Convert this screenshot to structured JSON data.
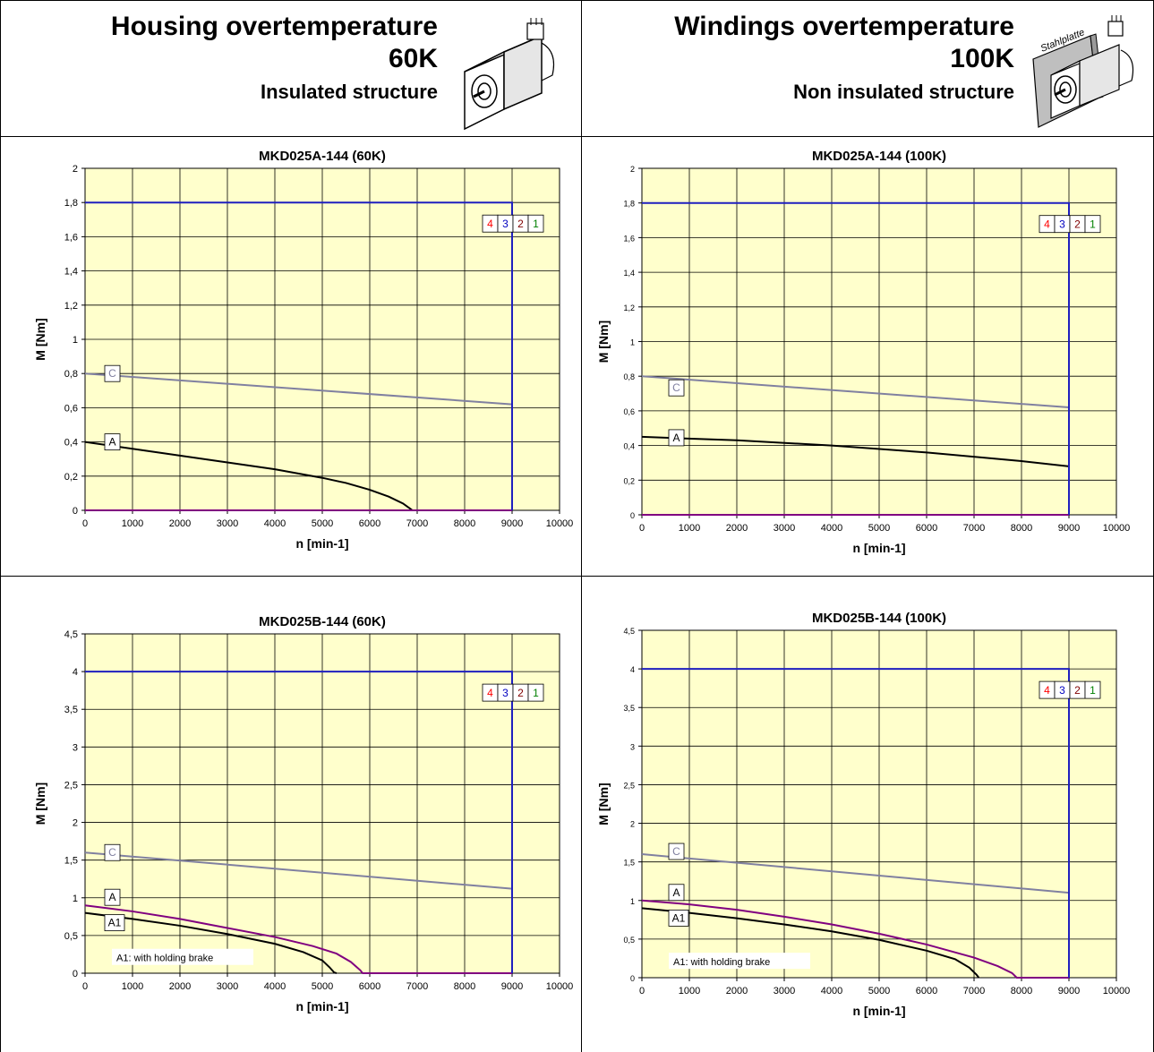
{
  "header_left": {
    "title": "Housing overtemperature",
    "value": "60K",
    "subtitle": "Insulated structure"
  },
  "header_right": {
    "title": "Windings overtemperature",
    "value": "100K",
    "subtitle": "Non insulated structure",
    "plate_label": "Stahlplatte"
  },
  "colors": {
    "plot_bg": "#ffffcc",
    "grid": "#000000",
    "curve_C": "#8080a0",
    "curve_A": "#000000",
    "curve_A_brake": "#800080",
    "limit_blue": "#1f1fbf",
    "label_4": "#ff0000",
    "label_3": "#0000c0",
    "label_2": "#800000",
    "label_1": "#008000"
  },
  "chart_data": [
    {
      "id": "c1",
      "type": "line",
      "title": "MKD025A-144 (60K)",
      "xlabel": "n [min-1]",
      "ylabel": "M [Nm]",
      "xlim": [
        0,
        10000
      ],
      "ylim": [
        0,
        2
      ],
      "xticks": [
        0,
        1000,
        2000,
        3000,
        4000,
        5000,
        6000,
        7000,
        8000,
        9000,
        10000
      ],
      "xtick_labels": [
        "0",
        "1000",
        "2000",
        "3000",
        "4000",
        "5000",
        "6000",
        "7000",
        "8000",
        "9000",
        "10000"
      ],
      "yticks": [
        0,
        0.2,
        0.4,
        0.6,
        0.8,
        1,
        1.2,
        1.4,
        1.6,
        1.8,
        2
      ],
      "ytick_labels": [
        "0",
        "0,2",
        "0,4",
        "0,6",
        "0,8",
        "1",
        "1,2",
        "1,4",
        "1,6",
        "1,8",
        "2"
      ],
      "grid": true,
      "limit_box": {
        "x": 9000,
        "y": 1.8
      },
      "curve_labels": [
        "4",
        "3",
        "2",
        "1"
      ],
      "series": [
        {
          "name": "C",
          "x": [
            0,
            9000
          ],
          "y": [
            0.8,
            0.62
          ]
        },
        {
          "name": "A",
          "x": [
            0,
            1000,
            2000,
            3000,
            4000,
            5000,
            5500,
            6000,
            6400,
            6700,
            6850,
            6900,
            9000
          ],
          "y": [
            0.4,
            0.36,
            0.32,
            0.28,
            0.24,
            0.19,
            0.16,
            0.12,
            0.08,
            0.04,
            0.01,
            0,
            0
          ]
        },
        {
          "name": "",
          "x": [
            0,
            9000
          ],
          "y": [
            0,
            0
          ]
        }
      ],
      "annotation": ""
    },
    {
      "id": "c2",
      "type": "line",
      "title": "MKD025A-144 (100K)",
      "xlabel": "n [min-1]",
      "ylabel": "M [Nm]",
      "xlim": [
        0,
        10000
      ],
      "ylim": [
        0,
        2
      ],
      "xticks": [
        0,
        1000,
        2000,
        3000,
        4000,
        5000,
        6000,
        7000,
        8000,
        9000,
        10000
      ],
      "xtick_labels": [
        "0",
        "1000",
        "2000",
        "3000",
        "4000",
        "5000",
        "6000",
        "7000",
        "8000",
        "9000",
        "10000"
      ],
      "yticks": [
        0,
        0.2,
        0.4,
        0.6,
        0.8,
        1,
        1.2,
        1.4,
        1.6,
        1.8,
        2
      ],
      "ytick_labels": [
        "0",
        "0,2",
        "0,4",
        "0,6",
        "0,8",
        "1",
        "1,2",
        "1,4",
        "1,6",
        "1,8",
        "2"
      ],
      "grid": true,
      "limit_box": {
        "x": 9000,
        "y": 1.8
      },
      "curve_labels": [
        "4",
        "3",
        "2",
        "1"
      ],
      "series": [
        {
          "name": "C",
          "x": [
            0,
            9000
          ],
          "y": [
            0.8,
            0.62
          ]
        },
        {
          "name": "A",
          "x": [
            0,
            2000,
            4000,
            6000,
            8000,
            9000
          ],
          "y": [
            0.45,
            0.43,
            0.4,
            0.36,
            0.31,
            0.28
          ]
        },
        {
          "name": "",
          "x": [
            0,
            9000
          ],
          "y": [
            0,
            0
          ]
        }
      ],
      "annotation": ""
    },
    {
      "id": "c3",
      "type": "line",
      "title": "MKD025B-144 (60K)",
      "xlabel": "n [min-1]",
      "ylabel": "M [Nm]",
      "xlim": [
        0,
        10000
      ],
      "ylim": [
        0,
        4.5
      ],
      "xticks": [
        0,
        1000,
        2000,
        3000,
        4000,
        5000,
        6000,
        7000,
        8000,
        9000,
        10000
      ],
      "xtick_labels": [
        "0",
        "1000",
        "2000",
        "3000",
        "4000",
        "5000",
        "6000",
        "7000",
        "8000",
        "9000",
        "10000"
      ],
      "yticks": [
        0,
        0.5,
        1,
        1.5,
        2,
        2.5,
        3,
        3.5,
        4,
        4.5
      ],
      "ytick_labels": [
        "0",
        "0,5",
        "1",
        "1,5",
        "2",
        "2,5",
        "3",
        "3,5",
        "4",
        "4,5"
      ],
      "grid": true,
      "limit_box": {
        "x": 9000,
        "y": 4
      },
      "curve_labels": [
        "4",
        "3",
        "2",
        "1"
      ],
      "series": [
        {
          "name": "C",
          "x": [
            0,
            9000
          ],
          "y": [
            1.6,
            1.12
          ]
        },
        {
          "name": "A",
          "x": [
            0,
            1000,
            2000,
            3000,
            4000,
            4800,
            5300,
            5600,
            5800,
            5850,
            9000
          ],
          "y": [
            0.9,
            0.82,
            0.72,
            0.6,
            0.48,
            0.36,
            0.26,
            0.15,
            0.04,
            0,
            0
          ]
        },
        {
          "name": "A1",
          "x": [
            0,
            1000,
            2000,
            3000,
            4000,
            4600,
            5000,
            5150,
            5250,
            5300
          ],
          "y": [
            0.8,
            0.72,
            0.63,
            0.52,
            0.39,
            0.28,
            0.17,
            0.08,
            0.01,
            0
          ]
        }
      ],
      "annotation": "A1: with holding brake"
    },
    {
      "id": "c4",
      "type": "line",
      "title": "MKD025B-144 (100K)",
      "xlabel": "n [min-1]",
      "ylabel": "M [Nm]",
      "xlim": [
        0,
        10000
      ],
      "ylim": [
        0,
        4.5
      ],
      "xticks": [
        0,
        1000,
        2000,
        3000,
        4000,
        5000,
        6000,
        7000,
        8000,
        9000,
        10000
      ],
      "xtick_labels": [
        "0",
        "1000",
        "2000",
        "3000",
        "4000",
        "5000",
        "6000",
        "7000",
        "8000",
        "9000",
        "10000"
      ],
      "yticks": [
        0,
        0.5,
        1,
        1.5,
        2,
        2.5,
        3,
        3.5,
        4,
        4.5
      ],
      "ytick_labels": [
        "0",
        "0,5",
        "1",
        "1,5",
        "2",
        "2,5",
        "3",
        "3,5",
        "4",
        "4,5"
      ],
      "grid": true,
      "limit_box": {
        "x": 9000,
        "y": 4
      },
      "curve_labels": [
        "4",
        "3",
        "2",
        "1"
      ],
      "series": [
        {
          "name": "C",
          "x": [
            0,
            9000
          ],
          "y": [
            1.6,
            1.1
          ]
        },
        {
          "name": "A",
          "x": [
            0,
            1000,
            2000,
            3000,
            4000,
            5000,
            6000,
            7000,
            7500,
            7800,
            7900,
            9000
          ],
          "y": [
            1,
            0.95,
            0.88,
            0.79,
            0.69,
            0.57,
            0.43,
            0.26,
            0.15,
            0.06,
            0,
            0
          ]
        },
        {
          "name": "A1",
          "x": [
            0,
            1000,
            2000,
            3000,
            4000,
            5000,
            6000,
            6600,
            6900,
            7050,
            7100
          ],
          "y": [
            0.9,
            0.84,
            0.77,
            0.69,
            0.6,
            0.49,
            0.35,
            0.24,
            0.13,
            0.04,
            0
          ]
        }
      ],
      "annotation": "A1: with holding brake"
    }
  ]
}
